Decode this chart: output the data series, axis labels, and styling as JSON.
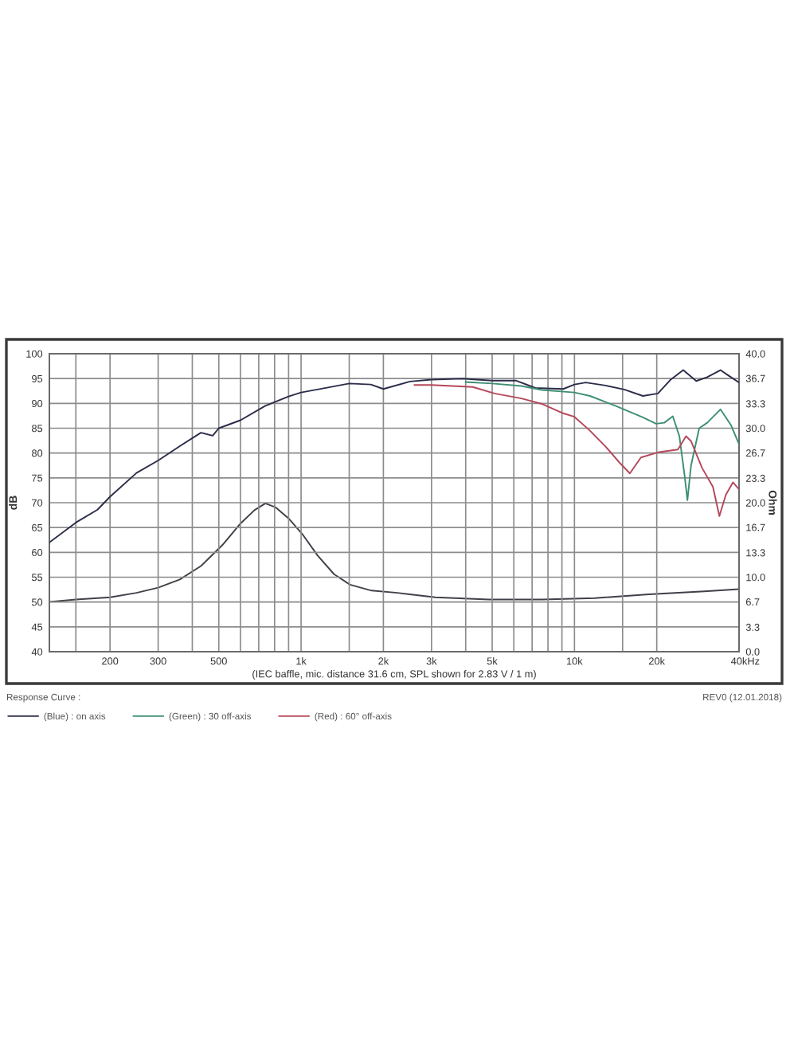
{
  "chart_data": {
    "type": "line",
    "xlabel": "(IEC baffle, mic. distance 31.6 cm, SPL shown for 2.83 V / 1 m)",
    "ylabel": "dB",
    "y2label": "Ohm",
    "log": "x",
    "grid": true,
    "legend": "bottom",
    "xlim": [
      120,
      40000
    ],
    "xticks": [
      {
        "value": 150,
        "label": null
      },
      {
        "value": 200,
        "label": "200"
      },
      {
        "value": 300,
        "label": "300"
      },
      {
        "value": 400,
        "label": null
      },
      {
        "value": 500,
        "label": "500"
      },
      {
        "value": 600,
        "label": null
      },
      {
        "value": 700,
        "label": null
      },
      {
        "value": 800,
        "label": null
      },
      {
        "value": 900,
        "label": null
      },
      {
        "value": 1000,
        "label": "1k"
      },
      {
        "value": 1500,
        "label": null
      },
      {
        "value": 2000,
        "label": "2k"
      },
      {
        "value": 3000,
        "label": "3k"
      },
      {
        "value": 4000,
        "label": null
      },
      {
        "value": 5000,
        "label": "5k"
      },
      {
        "value": 6000,
        "label": null
      },
      {
        "value": 7000,
        "label": null
      },
      {
        "value": 8000,
        "label": null
      },
      {
        "value": 9000,
        "label": null
      },
      {
        "value": 10000,
        "label": "10k"
      },
      {
        "value": 15000,
        "label": null
      },
      {
        "value": 20000,
        "label": "20k"
      },
      {
        "value": 40000,
        "label": "40k"
      }
    ],
    "ylim": [
      40,
      100
    ],
    "yticks": [
      40,
      45,
      50,
      55,
      60,
      65,
      70,
      75,
      80,
      85,
      90,
      95,
      100
    ],
    "y2lim": [
      0,
      40
    ],
    "y2ticks": [
      {
        "value": 0,
        "label": "0.0"
      },
      {
        "value": 3.3,
        "label": "3.3"
      },
      {
        "value": 6.7,
        "label": "6.7"
      },
      {
        "value": 10,
        "label": "10.0"
      },
      {
        "value": 13.3,
        "label": "13.3"
      },
      {
        "value": 16.7,
        "label": "16.7"
      },
      {
        "value": 20,
        "label": "20.0"
      },
      {
        "value": 23.3,
        "label": "23.3"
      },
      {
        "value": 26.7,
        "label": "26.7"
      },
      {
        "value": 30,
        "label": "30.0"
      },
      {
        "value": 33.3,
        "label": "33.3"
      },
      {
        "value": 36.7,
        "label": "36.7"
      },
      {
        "value": 40,
        "label": "40.0"
      }
    ],
    "annotations": [
      "Response Curve :",
      "REV0 (12.01.2018)",
      "Hz"
    ],
    "series": [
      {
        "name": "(Blue) : on axis",
        "color": "#2b2d4a",
        "x": [
          120,
          150,
          180,
          200,
          250,
          300,
          360,
          430,
          475,
          500,
          600,
          740,
          900,
          1000,
          1200,
          1500,
          1800,
          2000,
          2500,
          3000,
          3900,
          4400,
          5000,
          6100,
          7200,
          9100,
          10000,
          11000,
          13000,
          15200,
          17800,
          20200,
          22400,
          25000,
          27900,
          30600,
          34200,
          36600,
          40000
        ],
        "values": [
          62.0,
          66.0,
          68.6,
          71.2,
          76.0,
          78.5,
          81.4,
          84.1,
          83.5,
          85.0,
          86.6,
          89.5,
          91.4,
          92.2,
          93.0,
          94.0,
          93.8,
          92.9,
          94.4,
          94.8,
          95.0,
          94.8,
          94.6,
          94.6,
          93.1,
          92.9,
          93.8,
          94.2,
          93.6,
          92.8,
          91.5,
          92.0,
          94.7,
          96.7,
          94.5,
          95.3,
          96.7,
          95.6,
          94.2
        ]
      },
      {
        "name": "(Green) : 30 off-axis",
        "color": "#3d8f73",
        "x": [
          4000,
          5000,
          6400,
          7600,
          10000,
          11400,
          14300,
          17800,
          19900,
          21300,
          22900,
          24200,
          25300,
          25900,
          26700,
          28600,
          30600,
          34200,
          37400,
          40000
        ],
        "values": [
          94.3,
          94.0,
          93.5,
          92.7,
          92.2,
          91.5,
          89.4,
          87.2,
          85.9,
          86.1,
          87.4,
          83.4,
          75.4,
          70.5,
          77.5,
          85.0,
          86.1,
          88.8,
          85.6,
          81.8
        ]
      },
      {
        "name": "(Red) : 60° off-axis",
        "color": "#b5485a",
        "x": [
          2600,
          3000,
          4250,
          5100,
          6400,
          7600,
          9100,
          10000,
          11400,
          13000,
          14600,
          15950,
          17500,
          20400,
          23900,
          25600,
          26700,
          29300,
          32100,
          33900,
          35800,
          38000,
          40000
        ],
        "values": [
          93.7,
          93.7,
          93.3,
          92.0,
          91.0,
          89.9,
          88.0,
          87.3,
          84.5,
          81.3,
          78.1,
          75.9,
          79.1,
          80.2,
          80.7,
          83.4,
          82.4,
          77.0,
          73.2,
          67.3,
          71.6,
          74.1,
          72.7
        ]
      },
      {
        "color": "#404048",
        "axis": "y2",
        "x": [
          120,
          150,
          200,
          250,
          300,
          360,
          430,
          515,
          600,
          675,
          740,
          805,
          900,
          1010,
          1150,
          1320,
          1510,
          1810,
          2250,
          3100,
          4860,
          7600,
          11900,
          18700,
          29900,
          40000
        ],
        "values": [
          6.7,
          7.0,
          7.3,
          7.9,
          8.6,
          9.7,
          11.5,
          14.3,
          17.2,
          19.0,
          19.9,
          19.4,
          17.9,
          15.8,
          12.9,
          10.4,
          9.0,
          8.2,
          7.9,
          7.3,
          7.0,
          7.0,
          7.2,
          7.7,
          8.1,
          8.4
        ]
      }
    ]
  }
}
